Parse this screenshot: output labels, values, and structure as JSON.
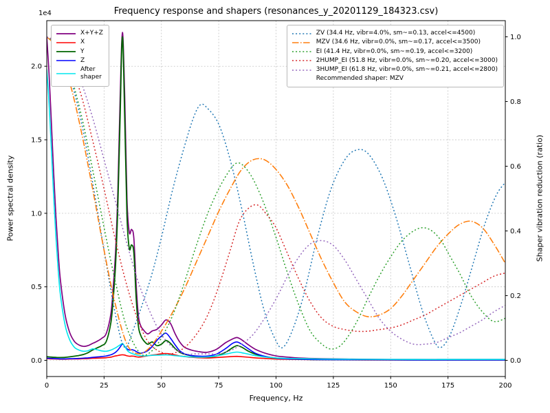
{
  "chart_data": {
    "type": "line",
    "title": "Frequency response and shapers (resonances_y_20201129_184323.csv)",
    "xlabel": "Frequency, Hz",
    "ylabel_left": "Power spectral density",
    "ylabel_right": "Shaper vibration reduction (ratio)",
    "offset_text": "1e4",
    "grid": true,
    "xlim": [
      0,
      200
    ],
    "ylim_left": [
      -1100,
      23100
    ],
    "ylim_right": [
      -0.05,
      1.05
    ],
    "xticks": {
      "values": [
        0,
        25,
        50,
        75,
        100,
        125,
        150,
        175,
        200
      ],
      "labels": [
        "0",
        "25",
        "50",
        "75",
        "100",
        "125",
        "150",
        "175",
        "200"
      ]
    },
    "yticks_left": {
      "values": [
        0,
        5000,
        10000,
        15000,
        20000
      ],
      "labels": [
        "0.0",
        "0.5",
        "1.0",
        "1.5",
        "2.0"
      ]
    },
    "yticks_right": {
      "values": [
        0,
        0.2,
        0.4,
        0.6,
        0.8,
        1.0
      ],
      "labels": [
        "0.0",
        "0.2",
        "0.4",
        "0.6",
        "0.8",
        "1.0"
      ]
    },
    "grid_color": "#c4c4c4",
    "psd_series": [
      {
        "name": "X+Y+Z",
        "label": "X+Y+Z",
        "color": "#800080",
        "style": "solid",
        "width": 1.7,
        "x": [
          0,
          1,
          2,
          3,
          4,
          5,
          6,
          8,
          10,
          12,
          14,
          16,
          18,
          20,
          22,
          24,
          26,
          28,
          29,
          30,
          31,
          32,
          33,
          34,
          35,
          36,
          37,
          38,
          39,
          40,
          41,
          42,
          44,
          46,
          48,
          50,
          52,
          54,
          56,
          58,
          60,
          63,
          66,
          70,
          74,
          78,
          81,
          83,
          85,
          88,
          91,
          95,
          100,
          105,
          110,
          120,
          140,
          160,
          180,
          200
        ],
        "y": [
          22000,
          19500,
          16200,
          12800,
          9800,
          7300,
          5400,
          3100,
          1900,
          1300,
          1050,
          950,
          1000,
          1150,
          1300,
          1500,
          1850,
          3200,
          5000,
          7400,
          11500,
          17800,
          22300,
          18000,
          11000,
          8700,
          8900,
          8300,
          5100,
          3000,
          2350,
          2100,
          1800,
          2000,
          2100,
          2400,
          2750,
          2500,
          1800,
          1250,
          900,
          700,
          600,
          550,
          750,
          1200,
          1450,
          1550,
          1400,
          1050,
          750,
          500,
          300,
          220,
          160,
          110,
          70,
          60,
          60,
          60
        ]
      },
      {
        "name": "X",
        "label": "X",
        "color": "#ff0000",
        "style": "solid",
        "width": 1.6,
        "x": [
          0,
          2,
          4,
          6,
          8,
          10,
          12,
          14,
          16,
          18,
          20,
          22,
          24,
          26,
          28,
          29,
          30,
          31,
          32,
          33,
          34,
          35,
          36,
          37,
          38,
          39,
          40,
          41,
          42,
          44,
          46,
          48,
          50,
          52,
          54,
          56,
          58,
          60,
          63,
          66,
          70,
          74,
          78,
          81,
          83,
          85,
          88,
          91,
          95,
          100,
          105,
          110,
          120,
          140,
          160,
          180,
          200
        ],
        "y": [
          120,
          100,
          90,
          80,
          80,
          90,
          95,
          100,
          110,
          120,
          140,
          150,
          160,
          180,
          220,
          260,
          300,
          330,
          360,
          380,
          360,
          310,
          280,
          290,
          280,
          240,
          220,
          230,
          260,
          310,
          360,
          400,
          440,
          470,
          430,
          370,
          300,
          260,
          210,
          180,
          160,
          190,
          230,
          260,
          270,
          250,
          210,
          170,
          130,
          90,
          70,
          60,
          40,
          30,
          30,
          30,
          30
        ]
      },
      {
        "name": "Y",
        "label": "Y",
        "color": "#006400",
        "style": "solid",
        "width": 1.8,
        "x": [
          0,
          2,
          4,
          6,
          8,
          10,
          12,
          14,
          16,
          18,
          20,
          22,
          24,
          26,
          28,
          29,
          30,
          31,
          32,
          33,
          34,
          35,
          36,
          37,
          38,
          39,
          40,
          41,
          42,
          44,
          46,
          48,
          50,
          52,
          54,
          56,
          58,
          60,
          63,
          66,
          70,
          74,
          78,
          81,
          83,
          85,
          88,
          91,
          95,
          100,
          105,
          110,
          120,
          140,
          160,
          180,
          200
        ],
        "y": [
          250,
          220,
          200,
          190,
          200,
          240,
          280,
          330,
          400,
          520,
          700,
          850,
          1000,
          1300,
          2600,
          4200,
          6500,
          10500,
          16500,
          22000,
          16500,
          9800,
          7600,
          7850,
          7300,
          4200,
          2300,
          1700,
          1400,
          1100,
          1250,
          1000,
          1100,
          1350,
          1150,
          800,
          550,
          420,
          320,
          270,
          230,
          300,
          550,
          850,
          1000,
          900,
          620,
          420,
          260,
          150,
          110,
          80,
          50,
          40,
          30,
          30,
          30
        ]
      },
      {
        "name": "Z",
        "label": "Z",
        "color": "#0000ff",
        "style": "solid",
        "width": 1.6,
        "x": [
          0,
          2,
          4,
          6,
          8,
          10,
          12,
          14,
          16,
          18,
          20,
          22,
          24,
          26,
          28,
          29,
          30,
          31,
          32,
          33,
          34,
          35,
          36,
          37,
          38,
          39,
          40,
          41,
          42,
          44,
          46,
          48,
          50,
          52,
          54,
          56,
          58,
          60,
          63,
          66,
          70,
          74,
          78,
          81,
          83,
          85,
          88,
          91,
          95,
          100,
          105,
          110,
          120,
          140,
          160,
          180,
          200
        ],
        "y": [
          150,
          130,
          110,
          100,
          100,
          110,
          120,
          130,
          150,
          170,
          200,
          230,
          260,
          300,
          380,
          450,
          550,
          700,
          900,
          1100,
          950,
          780,
          700,
          720,
          690,
          600,
          520,
          480,
          520,
          650,
          950,
          1350,
          1650,
          1850,
          1500,
          1050,
          650,
          450,
          330,
          290,
          290,
          420,
          800,
          1150,
          1250,
          1100,
          780,
          480,
          280,
          150,
          100,
          80,
          50,
          40,
          30,
          30,
          30
        ]
      },
      {
        "name": "After shaper",
        "label": "After\nshaper",
        "color": "#00e5ee",
        "style": "solid",
        "width": 1.6,
        "x": [
          0,
          1,
          2,
          3,
          4,
          5,
          6,
          8,
          10,
          12,
          14,
          16,
          18,
          20,
          22,
          24,
          26,
          28,
          30,
          31,
          32,
          33,
          34,
          35,
          36,
          38,
          40,
          42,
          44,
          46,
          48,
          50,
          52,
          54,
          56,
          58,
          60,
          63,
          66,
          70,
          74,
          78,
          81,
          83,
          85,
          88,
          91,
          95,
          100,
          105,
          110,
          120,
          140,
          160,
          180,
          200
        ],
        "y": [
          19800,
          17500,
          14400,
          11200,
          8400,
          6100,
          4400,
          2400,
          1400,
          900,
          700,
          620,
          650,
          780,
          720,
          640,
          620,
          700,
          850,
          950,
          1050,
          1150,
          950,
          700,
          550,
          420,
          330,
          300,
          320,
          340,
          350,
          360,
          370,
          350,
          320,
          290,
          260,
          230,
          220,
          230,
          300,
          420,
          520,
          560,
          520,
          420,
          320,
          230,
          160,
          130,
          110,
          90,
          70,
          60,
          60,
          60
        ]
      }
    ],
    "shaper_series": [
      {
        "name": "ZV",
        "label": "ZV (34.4 Hz, vibr=4.0%, sm~=0.13, accel<=4500)",
        "color": "#1f77b4",
        "style": "dotted",
        "width": 1.5,
        "x": [
          0,
          5,
          10,
          15,
          20,
          25,
          30,
          34,
          38,
          42,
          46,
          50,
          55,
          60,
          64,
          67,
          70,
          75,
          80,
          85,
          90,
          95,
          100,
          103,
          107,
          112,
          118,
          124,
          130,
          135,
          140,
          146,
          152,
          158,
          164,
          169,
          172,
          176,
          181,
          186,
          191,
          196,
          200
        ],
        "y": [
          1.0,
          0.97,
          0.88,
          0.74,
          0.55,
          0.34,
          0.14,
          0.04,
          0.1,
          0.18,
          0.27,
          0.38,
          0.53,
          0.66,
          0.75,
          0.79,
          0.78,
          0.73,
          0.62,
          0.47,
          0.3,
          0.15,
          0.06,
          0.04,
          0.09,
          0.2,
          0.38,
          0.53,
          0.62,
          0.65,
          0.64,
          0.57,
          0.45,
          0.3,
          0.15,
          0.06,
          0.04,
          0.08,
          0.18,
          0.3,
          0.42,
          0.51,
          0.55
        ]
      },
      {
        "name": "MZV",
        "label": "MZV (34.6 Hz, vibr=0.0%, sm~=0.17, accel<=3500)",
        "color": "#ff7f0e",
        "style": "dashdot",
        "width": 1.6,
        "x": [
          0,
          5,
          10,
          15,
          20,
          25,
          30,
          35,
          40,
          45,
          50,
          55,
          60,
          65,
          70,
          75,
          80,
          85,
          90,
          95,
          100,
          105,
          110,
          115,
          120,
          125,
          130,
          135,
          140,
          145,
          150,
          155,
          160,
          165,
          170,
          175,
          180,
          185,
          190,
          195,
          200
        ],
        "y": [
          1.0,
          0.96,
          0.86,
          0.71,
          0.53,
          0.34,
          0.17,
          0.05,
          0.02,
          0.04,
          0.09,
          0.15,
          0.22,
          0.3,
          0.38,
          0.46,
          0.53,
          0.59,
          0.62,
          0.62,
          0.59,
          0.54,
          0.47,
          0.39,
          0.31,
          0.24,
          0.18,
          0.15,
          0.135,
          0.14,
          0.16,
          0.2,
          0.25,
          0.3,
          0.35,
          0.39,
          0.42,
          0.43,
          0.41,
          0.36,
          0.3
        ]
      },
      {
        "name": "EI",
        "label": "EI (41.4 Hz, vibr=0.0%, sm~=0.19, accel<=3200)",
        "color": "#2ca02c",
        "style": "dotted",
        "width": 1.5,
        "x": [
          0,
          5,
          10,
          15,
          20,
          25,
          30,
          35,
          41,
          46,
          50,
          55,
          60,
          65,
          70,
          75,
          80,
          83,
          86,
          90,
          95,
          100,
          105,
          110,
          115,
          120,
          124,
          128,
          132,
          136,
          140,
          145,
          150,
          155,
          160,
          164,
          168,
          172,
          176,
          180,
          185,
          190,
          195,
          200
        ],
        "y": [
          1.0,
          0.97,
          0.89,
          0.76,
          0.59,
          0.41,
          0.24,
          0.1,
          0.02,
          0.03,
          0.07,
          0.14,
          0.24,
          0.35,
          0.45,
          0.53,
          0.59,
          0.61,
          0.6,
          0.56,
          0.48,
          0.38,
          0.27,
          0.17,
          0.09,
          0.05,
          0.035,
          0.045,
          0.08,
          0.13,
          0.19,
          0.26,
          0.32,
          0.37,
          0.4,
          0.41,
          0.4,
          0.37,
          0.32,
          0.27,
          0.2,
          0.15,
          0.12,
          0.13
        ]
      },
      {
        "name": "2HUMP_EI",
        "label": "2HUMP_EI (51.8 Hz, vibr=0.0%, sm~=0.20, accel<=3000)",
        "color": "#d62728",
        "style": "dotted",
        "width": 1.5,
        "x": [
          0,
          5,
          10,
          15,
          20,
          25,
          30,
          35,
          40,
          45,
          52,
          58,
          63,
          68,
          72,
          76,
          80,
          84,
          88,
          92,
          96,
          100,
          105,
          110,
          115,
          120,
          125,
          130,
          135,
          140,
          145,
          150,
          155,
          160,
          165,
          170,
          175,
          180,
          185,
          190,
          195,
          200
        ],
        "y": [
          1.0,
          0.98,
          0.92,
          0.82,
          0.68,
          0.53,
          0.37,
          0.23,
          0.12,
          0.05,
          0.02,
          0.03,
          0.06,
          0.11,
          0.17,
          0.25,
          0.34,
          0.43,
          0.47,
          0.48,
          0.45,
          0.41,
          0.33,
          0.25,
          0.18,
          0.13,
          0.105,
          0.095,
          0.09,
          0.09,
          0.095,
          0.1,
          0.11,
          0.125,
          0.14,
          0.16,
          0.18,
          0.2,
          0.22,
          0.24,
          0.26,
          0.27
        ]
      },
      {
        "name": "3HUMP_EI",
        "label": "3HUMP_EI (61.8 Hz, vibr=0.0%, sm~=0.21, accel<=2800)",
        "color": "#9467bd",
        "style": "dotted",
        "width": 1.5,
        "x": [
          0,
          5,
          10,
          15,
          20,
          25,
          30,
          35,
          40,
          45,
          50,
          55,
          60,
          65,
          70,
          75,
          80,
          85,
          90,
          95,
          100,
          105,
          110,
          115,
          120,
          125,
          130,
          135,
          140,
          145,
          150,
          155,
          160,
          165,
          170,
          175,
          180,
          185,
          190,
          195,
          200
        ],
        "y": [
          1.0,
          0.98,
          0.94,
          0.86,
          0.75,
          0.62,
          0.49,
          0.36,
          0.24,
          0.15,
          0.08,
          0.04,
          0.02,
          0.02,
          0.02,
          0.02,
          0.03,
          0.05,
          0.08,
          0.13,
          0.19,
          0.26,
          0.32,
          0.36,
          0.37,
          0.355,
          0.31,
          0.25,
          0.19,
          0.13,
          0.09,
          0.065,
          0.05,
          0.05,
          0.055,
          0.07,
          0.085,
          0.105,
          0.125,
          0.15,
          0.17
        ]
      }
    ],
    "legend_note": "Recommended shaper: MZV"
  }
}
